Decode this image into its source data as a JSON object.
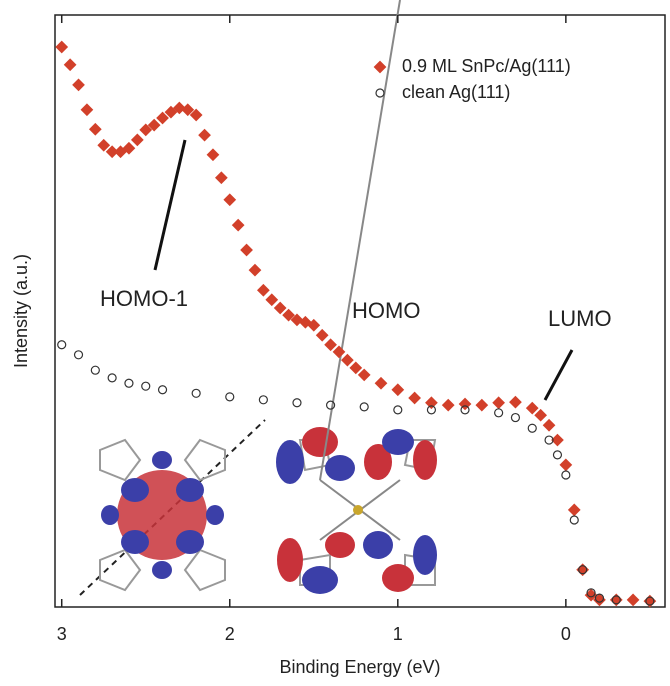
{
  "chart_data": {
    "type": "scatter",
    "x_label": "Binding Energy (eV)",
    "y_label": "Intensity (a.u.)",
    "xlim": [
      3.04,
      -0.59
    ],
    "ylim": [
      0,
      100
    ],
    "xticks": [
      3,
      2,
      1,
      0
    ],
    "legend": "upper right",
    "annotations": [
      "HOMO-1",
      "HOMO",
      "LUMO"
    ],
    "series": [
      {
        "name": "0.9 ML SnPc/Ag(111)",
        "color": "#d2402a",
        "marker": "diamond",
        "x": [
          3.0,
          2.95,
          2.9,
          2.85,
          2.8,
          2.75,
          2.7,
          2.65,
          2.6,
          2.55,
          2.5,
          2.45,
          2.4,
          2.35,
          2.3,
          2.25,
          2.2,
          2.15,
          2.1,
          2.05,
          2.0,
          1.95,
          1.9,
          1.85,
          1.8,
          1.75,
          1.7,
          1.65,
          1.6,
          1.55,
          1.5,
          1.45,
          1.4,
          1.35,
          1.3,
          1.25,
          1.2,
          1.1,
          1.0,
          0.9,
          0.8,
          0.7,
          0.6,
          0.5,
          0.4,
          0.3,
          0.2,
          0.15,
          0.1,
          0.05,
          0.0,
          -0.05,
          -0.1,
          -0.15,
          -0.2,
          -0.3,
          -0.4,
          -0.5
        ],
        "values": [
          94.6,
          91.6,
          88.2,
          84,
          80.7,
          78,
          76.9,
          76.9,
          77.5,
          78.9,
          80.6,
          81.4,
          82.6,
          83.6,
          84.3,
          84,
          83.1,
          79.7,
          76.4,
          72.5,
          68.8,
          64.5,
          60.3,
          56.9,
          53.5,
          51.9,
          50.5,
          49.3,
          48.5,
          48.1,
          47.6,
          45.9,
          44.3,
          43.1,
          41.7,
          40.4,
          39.2,
          37.8,
          36.7,
          35.3,
          34.5,
          34.1,
          34.3,
          34.1,
          34.5,
          34.6,
          33.6,
          32.4,
          30.7,
          28.2,
          24,
          16.4,
          6.3,
          2,
          1.2,
          1.2,
          1.2,
          1
        ]
      },
      {
        "name": "clean Ag(111)",
        "color": "#333333",
        "marker": "open-circle",
        "x": [
          3.0,
          2.9,
          2.8,
          2.7,
          2.6,
          2.5,
          2.4,
          2.2,
          2.0,
          1.8,
          1.6,
          1.4,
          1.2,
          1.0,
          0.8,
          0.6,
          0.4,
          0.3,
          0.2,
          0.1,
          0.05,
          0.0,
          -0.05,
          -0.1,
          -0.15,
          -0.2,
          -0.3,
          -0.5
        ],
        "values": [
          44.3,
          42.6,
          40,
          38.7,
          37.8,
          37.3,
          36.7,
          36.1,
          35.5,
          35,
          34.5,
          34.1,
          33.8,
          33.3,
          33.3,
          33.3,
          32.8,
          32,
          30.2,
          28.2,
          25.7,
          22.3,
          14.7,
          6.3,
          2.4,
          1.5,
          1.2,
          1
        ]
      }
    ]
  }
}
